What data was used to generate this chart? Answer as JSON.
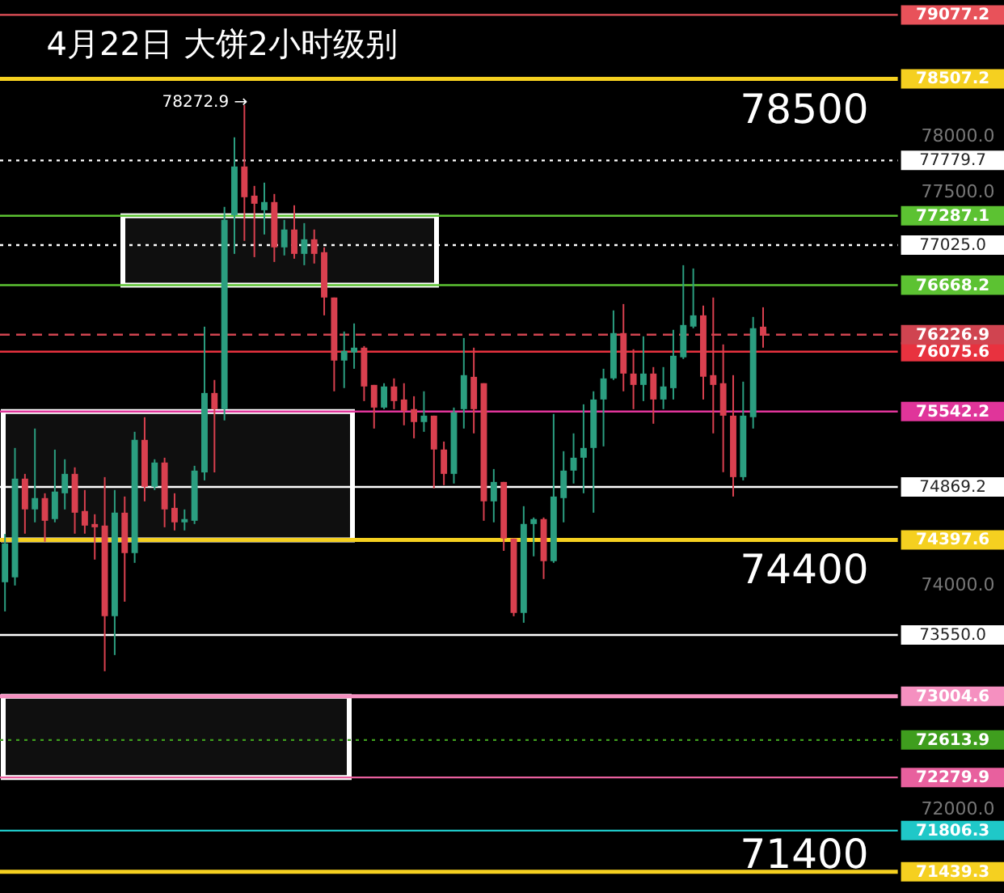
{
  "chart_data": {
    "type": "candlestick",
    "title": "4月22日 大饼2小时级别",
    "categories": [
      null,
      null,
      null,
      null,
      null,
      null,
      null,
      null,
      null,
      null,
      null,
      null,
      null,
      null,
      null,
      null,
      null,
      null,
      null,
      null,
      null,
      null,
      null,
      null,
      null,
      null,
      null,
      null,
      null,
      null,
      null,
      null,
      null,
      null,
      null,
      null,
      null,
      null,
      null,
      null,
      null,
      null,
      null,
      null,
      null,
      null,
      null,
      null,
      null,
      null,
      null,
      null,
      null,
      null,
      null,
      null,
      null,
      null,
      null,
      null,
      null,
      null,
      null,
      null,
      null,
      null,
      null,
      null,
      null,
      null,
      null,
      null,
      null,
      null,
      null,
      null,
      null,
      null,
      null,
      null,
      null,
      null,
      null,
      null,
      null,
      null,
      null,
      null,
      null,
      null
    ],
    "ohlc": [
      [
        74020,
        74450,
        73760,
        74366
      ],
      [
        74063,
        75217,
        73991,
        74943
      ],
      [
        74943,
        74986,
        74453,
        74669
      ],
      [
        74669,
        75390,
        74554,
        74770
      ],
      [
        74770,
        74813,
        74381,
        74568
      ],
      [
        74583,
        75202,
        74554,
        74828
      ],
      [
        74813,
        75116,
        74669,
        74986
      ],
      [
        74986,
        75044,
        74453,
        74640
      ],
      [
        74655,
        74842,
        74453,
        74525
      ],
      [
        74539,
        74626,
        74222,
        74510
      ],
      [
        74525,
        74957,
        73227,
        73717
      ],
      [
        73717,
        74842,
        73371,
        74640
      ],
      [
        74640,
        74784,
        73847,
        74280
      ],
      [
        74280,
        75361,
        74193,
        75289
      ],
      [
        75289,
        75491,
        74741,
        74871
      ],
      [
        74871,
        75116,
        74842,
        75087
      ],
      [
        75087,
        75130,
        74510,
        74669
      ],
      [
        74683,
        74813,
        74482,
        74554
      ],
      [
        74554,
        74669,
        74482,
        74583
      ],
      [
        74568,
        75058,
        74539,
        75015
      ],
      [
        74999,
        76298,
        74928,
        75707
      ],
      [
        75707,
        75823,
        74999,
        75563
      ],
      [
        75563,
        77366,
        75462,
        77250
      ],
      [
        77293,
        77986,
        76947,
        77726
      ],
      [
        77726,
        78272.9,
        77063,
        77452
      ],
      [
        77466,
        77553,
        76918,
        77394
      ],
      [
        77336,
        77582,
        77120,
        77409
      ],
      [
        77409,
        77481,
        76875,
        77005
      ],
      [
        77005,
        77250,
        76933,
        77164
      ],
      [
        77164,
        77380,
        76904,
        76947
      ],
      [
        76947,
        77221,
        76846,
        77077
      ],
      [
        77077,
        77164,
        76861,
        76947
      ],
      [
        76962,
        77005,
        76399,
        76558
      ],
      [
        76558,
        76558,
        75722,
        75996
      ],
      [
        75996,
        76255,
        75751,
        76082
      ],
      [
        76068,
        76327,
        75923,
        76111
      ],
      [
        76111,
        76125,
        75635,
        75765
      ],
      [
        75779,
        75779,
        75390,
        75577
      ],
      [
        75577,
        75794,
        75563,
        75765
      ],
      [
        75765,
        75837,
        75563,
        75635
      ],
      [
        75649,
        75794,
        75419,
        75548
      ],
      [
        75563,
        75678,
        75303,
        75448
      ],
      [
        75448,
        75722,
        75361,
        75505
      ],
      [
        75505,
        75505,
        74857,
        75203
      ],
      [
        75203,
        75274,
        74885,
        74986
      ],
      [
        74986,
        75577,
        74900,
        75534
      ],
      [
        75563,
        76197,
        75390,
        75866
      ],
      [
        75851,
        76111,
        75347,
        75563
      ],
      [
        75794,
        75794,
        74568,
        74741
      ],
      [
        74741,
        75029,
        74554,
        74914
      ],
      [
        74914,
        74914,
        74300,
        74410
      ],
      [
        74410,
        74410,
        73717,
        73746
      ],
      [
        73746,
        74698,
        73659,
        74539
      ],
      [
        74539,
        74597,
        74251,
        74583
      ],
      [
        74583,
        74597,
        74049,
        74208
      ],
      [
        74208,
        75520,
        74193,
        74784
      ],
      [
        74770,
        75188,
        74554,
        75015
      ],
      [
        75015,
        75347,
        74900,
        75130
      ],
      [
        75130,
        75606,
        74813,
        75217
      ],
      [
        75217,
        75722,
        74640,
        75649
      ],
      [
        75649,
        75923,
        75231,
        75837
      ],
      [
        75837,
        76443,
        75823,
        76241
      ],
      [
        76241,
        76500,
        75722,
        75880
      ],
      [
        75880,
        76097,
        75563,
        75779
      ],
      [
        75779,
        76212,
        75635,
        75880
      ],
      [
        75880,
        75938,
        75433,
        75649
      ],
      [
        75649,
        75938,
        75563,
        75765
      ],
      [
        75750,
        76270,
        75649,
        76039
      ],
      [
        76025,
        76846,
        76010,
        76313
      ],
      [
        76299,
        76817,
        76284,
        76399
      ],
      [
        76399,
        76486,
        75649,
        75852
      ],
      [
        75866,
        76558,
        75347,
        75779
      ],
      [
        75794,
        76140,
        75001,
        75505
      ],
      [
        75505,
        75866,
        74784,
        74957
      ],
      [
        74957,
        75808,
        74928,
        75505
      ],
      [
        75491,
        76385,
        75390,
        76284
      ],
      [
        76298,
        76471,
        76111,
        76226.9
      ],
      null,
      null,
      null,
      null,
      null,
      null,
      null,
      null,
      null,
      null,
      null,
      null,
      null
    ],
    "ylim": [
      71250,
      79210
    ],
    "yticks": [
      {
        "value": 72000,
        "label": "72000.0"
      },
      {
        "value": 74000,
        "label": "74000.0"
      },
      {
        "value": 77500,
        "label": "77500.0"
      },
      {
        "value": 78000,
        "label": "78000.0"
      }
    ],
    "ref_lines": [
      {
        "axis": "y",
        "value": 79077.2,
        "label": "79077.2",
        "color": "#e8525a"
      },
      {
        "axis": "y",
        "value": 78507.2,
        "label": "78507.2",
        "color": "#f5d020"
      },
      {
        "axis": "y",
        "value": 77779.7,
        "label": "77779.7",
        "color": "#ffffff",
        "line_style": "dotted"
      },
      {
        "axis": "y",
        "value": 77287.1,
        "label": "77287.1",
        "color": "#5cc232"
      },
      {
        "axis": "y",
        "value": 77025.0,
        "label": "77025.0",
        "color": "#ffffff",
        "line_style": "dotted"
      },
      {
        "axis": "y",
        "value": 76668.2,
        "label": "76668.2",
        "color": "#5cc232"
      },
      {
        "axis": "y",
        "value": 76075.6,
        "label": "76075.6",
        "color": "#e8323f"
      },
      {
        "axis": "y",
        "value": 76226.9,
        "label": "76226.9",
        "color": "#d04450",
        "line_style": "dashed"
      },
      {
        "axis": "y",
        "value": 75542.2,
        "label": "75542.2",
        "color": "#e0359a"
      },
      {
        "axis": "y",
        "value": 74869.2,
        "label": "74869.2",
        "color": "#ffffff"
      },
      {
        "axis": "y",
        "value": 74397.6,
        "label": "74397.6",
        "color": "#f5d020"
      },
      {
        "axis": "y",
        "value": 73550.0,
        "label": "73550.0",
        "color": "#ffffff"
      },
      {
        "axis": "y",
        "value": 73004.6,
        "label": "73004.6",
        "color": "#f590c0"
      },
      {
        "axis": "y",
        "value": 72613.9,
        "label": "72613.9",
        "color": "#3f9e1e",
        "line_style": "dotted"
      },
      {
        "axis": "y",
        "value": 72279.9,
        "label": "72279.9",
        "color": "#e8609e"
      },
      {
        "axis": "y",
        "value": 71806.3,
        "label": "71806.3",
        "color": "#1fc8c8"
      },
      {
        "axis": "y",
        "value": 71439.3,
        "label": "71439.3",
        "color": "#f5d020"
      }
    ],
    "bands": [
      {
        "axis": "y",
        "from": 76668.2,
        "to": 77287.1,
        "color": "#ffffff"
      },
      {
        "axis": "y",
        "from": 74397.6,
        "to": 75542.2,
        "color": "#ffffff"
      },
      {
        "axis": "y",
        "from": 72279.9,
        "to": 73004.6,
        "color": "#ffffff"
      }
    ],
    "annotations": [
      "78272.9 →",
      {
        "text": "78500",
        "y": 78500
      },
      {
        "text": "74400",
        "y": 74400
      },
      {
        "text": "71400",
        "y": 71400
      }
    ]
  }
}
